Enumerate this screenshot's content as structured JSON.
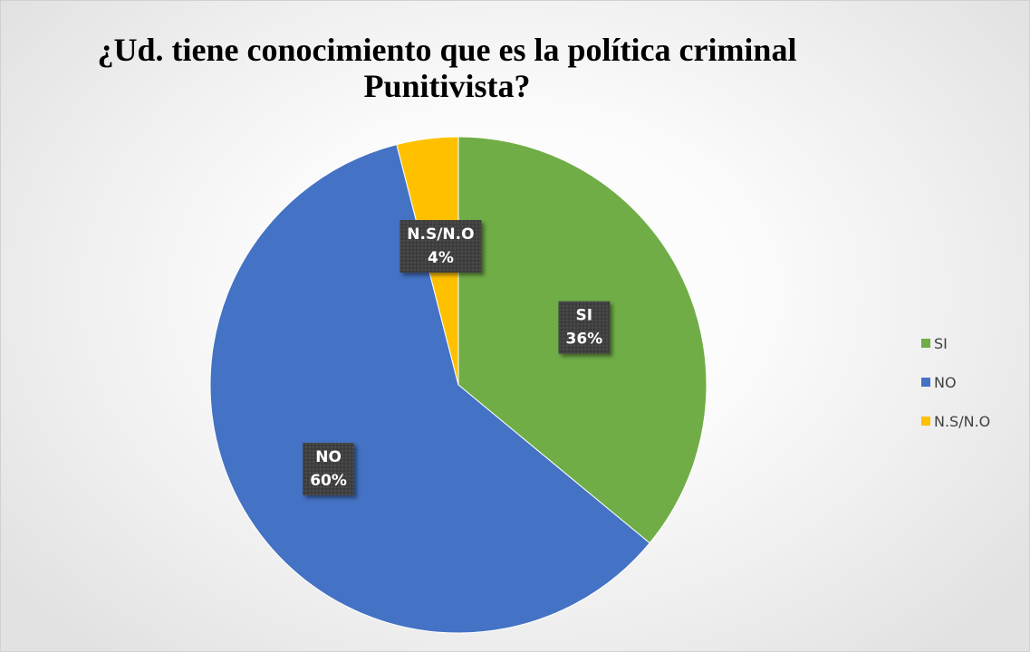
{
  "chart_data": {
    "type": "pie",
    "title": "¿Ud. tiene conocimiento que es la política criminal Punitivista?",
    "slices": [
      {
        "label": "SI",
        "value": 36,
        "display": "36%",
        "color": "#70ad47"
      },
      {
        "label": "NO",
        "value": 60,
        "display": "60%",
        "color": "#4472c4"
      },
      {
        "label": "N.S/N.O",
        "value": 4,
        "display": "4%",
        "color": "#ffc000"
      }
    ],
    "legend": {
      "position": "right",
      "entries": [
        "SI",
        "NO",
        "N.S/N.O"
      ]
    },
    "data_label_style": {
      "background": "#404040",
      "text_color": "#ffffff"
    }
  }
}
